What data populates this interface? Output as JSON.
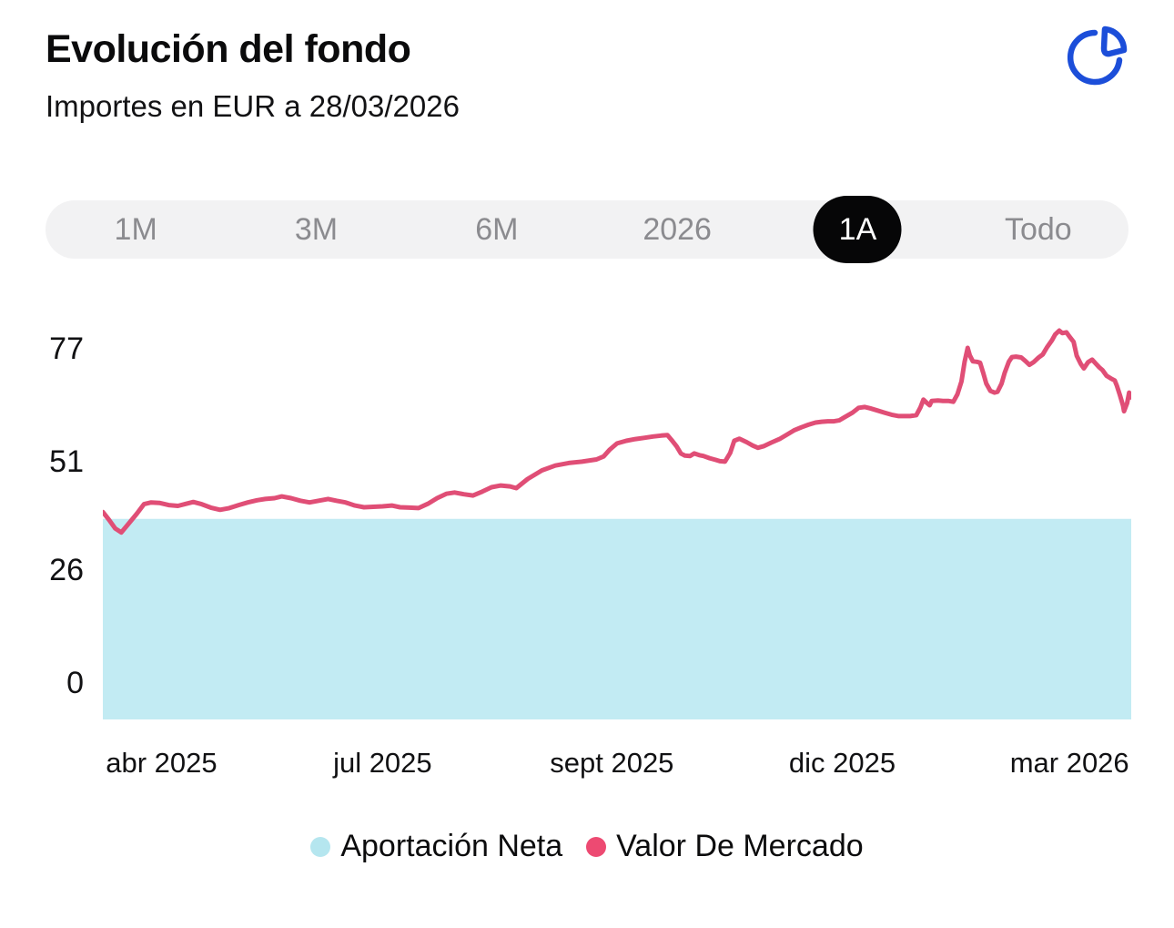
{
  "header": {
    "title": "Evolución del fondo",
    "subtitle": "Importes en EUR a 28/03/2026"
  },
  "icons": {
    "pie_chart_color": "#1C4ED9"
  },
  "range_selector": {
    "options": [
      "1M",
      "3M",
      "6M",
      "2026",
      "1A",
      "Todo"
    ],
    "selected": "1A",
    "selected_bg": "#060607",
    "inactive_color": "#8B8B8F"
  },
  "chart_data": {
    "type": "area+line",
    "title": "Evolución del fondo",
    "currency": "EUR",
    "as_of_date": "28/03/2026",
    "grid": false,
    "ylim": [
      0,
      86
    ],
    "y_ticks": [
      77,
      51,
      26,
      0
    ],
    "x_ticks": [
      {
        "label": "abr 2025",
        "f": 0.057
      },
      {
        "label": "jul 2025",
        "f": 0.272
      },
      {
        "label": "sept 2025",
        "f": 0.495
      },
      {
        "label": "dic 2025",
        "f": 0.719
      },
      {
        "label": "mar 2026",
        "f": 0.94
      }
    ],
    "series": [
      {
        "name": "Aportación Neta",
        "type": "area",
        "color": "#C2EBF3",
        "value_constant": 37.8
      },
      {
        "name": "Valor De Mercado",
        "type": "line",
        "color": "#E04E76",
        "points": [
          [
            0.0,
            39.4
          ],
          [
            0.006,
            37.6
          ],
          [
            0.012,
            35.6
          ],
          [
            0.018,
            34.7
          ],
          [
            0.024,
            36.4
          ],
          [
            0.033,
            39.0
          ],
          [
            0.04,
            41.2
          ],
          [
            0.047,
            41.6
          ],
          [
            0.055,
            41.5
          ],
          [
            0.064,
            41.0
          ],
          [
            0.073,
            40.8
          ],
          [
            0.081,
            41.3
          ],
          [
            0.088,
            41.7
          ],
          [
            0.096,
            41.2
          ],
          [
            0.105,
            40.4
          ],
          [
            0.114,
            39.9
          ],
          [
            0.123,
            40.3
          ],
          [
            0.132,
            41.0
          ],
          [
            0.141,
            41.6
          ],
          [
            0.15,
            42.1
          ],
          [
            0.158,
            42.4
          ],
          [
            0.167,
            42.6
          ],
          [
            0.174,
            43.0
          ],
          [
            0.183,
            42.6
          ],
          [
            0.192,
            42.0
          ],
          [
            0.201,
            41.6
          ],
          [
            0.21,
            42.0
          ],
          [
            0.219,
            42.4
          ],
          [
            0.227,
            42.0
          ],
          [
            0.236,
            41.6
          ],
          [
            0.245,
            40.9
          ],
          [
            0.254,
            40.5
          ],
          [
            0.263,
            40.6
          ],
          [
            0.272,
            40.7
          ],
          [
            0.281,
            40.9
          ],
          [
            0.289,
            40.5
          ],
          [
            0.298,
            40.4
          ],
          [
            0.307,
            40.3
          ],
          [
            0.316,
            41.3
          ],
          [
            0.325,
            42.6
          ],
          [
            0.334,
            43.6
          ],
          [
            0.342,
            43.9
          ],
          [
            0.351,
            43.5
          ],
          [
            0.36,
            43.2
          ],
          [
            0.369,
            44.1
          ],
          [
            0.378,
            45.1
          ],
          [
            0.387,
            45.5
          ],
          [
            0.396,
            45.3
          ],
          [
            0.402,
            44.9
          ],
          [
            0.413,
            47.0
          ],
          [
            0.427,
            49.0
          ],
          [
            0.44,
            50.1
          ],
          [
            0.453,
            50.7
          ],
          [
            0.466,
            51.0
          ],
          [
            0.48,
            51.5
          ],
          [
            0.487,
            52.2
          ],
          [
            0.493,
            53.8
          ],
          [
            0.5,
            55.2
          ],
          [
            0.509,
            55.8
          ],
          [
            0.518,
            56.2
          ],
          [
            0.527,
            56.5
          ],
          [
            0.535,
            56.8
          ],
          [
            0.543,
            57.0
          ],
          [
            0.549,
            57.1
          ],
          [
            0.553,
            56.0
          ],
          [
            0.558,
            54.5
          ],
          [
            0.562,
            52.9
          ],
          [
            0.566,
            52.4
          ],
          [
            0.571,
            52.3
          ],
          [
            0.575,
            52.9
          ],
          [
            0.58,
            52.5
          ],
          [
            0.584,
            52.3
          ],
          [
            0.59,
            51.8
          ],
          [
            0.596,
            51.4
          ],
          [
            0.6,
            51.1
          ],
          [
            0.605,
            51.0
          ],
          [
            0.61,
            53.0
          ],
          [
            0.614,
            55.8
          ],
          [
            0.619,
            56.3
          ],
          [
            0.626,
            55.5
          ],
          [
            0.632,
            54.7
          ],
          [
            0.637,
            54.2
          ],
          [
            0.643,
            54.6
          ],
          [
            0.65,
            55.4
          ],
          [
            0.658,
            56.2
          ],
          [
            0.665,
            57.2
          ],
          [
            0.672,
            58.2
          ],
          [
            0.679,
            58.9
          ],
          [
            0.686,
            59.5
          ],
          [
            0.693,
            60.0
          ],
          [
            0.699,
            60.2
          ],
          [
            0.705,
            60.3
          ],
          [
            0.711,
            60.3
          ],
          [
            0.716,
            60.5
          ],
          [
            0.721,
            61.2
          ],
          [
            0.729,
            62.3
          ],
          [
            0.735,
            63.4
          ],
          [
            0.741,
            63.6
          ],
          [
            0.746,
            63.3
          ],
          [
            0.753,
            62.8
          ],
          [
            0.76,
            62.3
          ],
          [
            0.767,
            61.8
          ],
          [
            0.774,
            61.5
          ],
          [
            0.78,
            61.5
          ],
          [
            0.785,
            61.5
          ],
          [
            0.791,
            61.7
          ],
          [
            0.795,
            63.5
          ],
          [
            0.798,
            65.3
          ],
          [
            0.801,
            64.6
          ],
          [
            0.804,
            64.0
          ],
          [
            0.806,
            65.0
          ],
          [
            0.812,
            65.1
          ],
          [
            0.817,
            65.0
          ],
          [
            0.822,
            65.0
          ],
          [
            0.827,
            64.8
          ],
          [
            0.831,
            66.5
          ],
          [
            0.835,
            69.5
          ],
          [
            0.838,
            74.0
          ],
          [
            0.841,
            77.2
          ],
          [
            0.843,
            75.5
          ],
          [
            0.846,
            74.1
          ],
          [
            0.85,
            74.0
          ],
          [
            0.853,
            73.8
          ],
          [
            0.856,
            71.5
          ],
          [
            0.859,
            69.0
          ],
          [
            0.863,
            67.3
          ],
          [
            0.867,
            66.9
          ],
          [
            0.87,
            67.1
          ],
          [
            0.874,
            69.0
          ],
          [
            0.877,
            71.5
          ],
          [
            0.881,
            74.0
          ],
          [
            0.884,
            75.1
          ],
          [
            0.888,
            75.2
          ],
          [
            0.893,
            75.0
          ],
          [
            0.897,
            74.2
          ],
          [
            0.901,
            73.3
          ],
          [
            0.905,
            73.9
          ],
          [
            0.91,
            75.0
          ],
          [
            0.914,
            75.7
          ],
          [
            0.918,
            77.3
          ],
          [
            0.923,
            79.0
          ],
          [
            0.926,
            80.3
          ],
          [
            0.93,
            81.2
          ],
          [
            0.933,
            80.6
          ],
          [
            0.937,
            80.8
          ],
          [
            0.94,
            79.8
          ],
          [
            0.944,
            78.6
          ],
          [
            0.947,
            75.4
          ],
          [
            0.951,
            73.5
          ],
          [
            0.954,
            72.5
          ],
          [
            0.958,
            73.9
          ],
          [
            0.962,
            74.5
          ],
          [
            0.965,
            73.7
          ],
          [
            0.969,
            72.7
          ],
          [
            0.972,
            72.1
          ],
          [
            0.976,
            70.8
          ],
          [
            0.98,
            70.2
          ],
          [
            0.984,
            69.7
          ],
          [
            0.986,
            68.5
          ],
          [
            0.989,
            66.3
          ],
          [
            0.992,
            63.9
          ],
          [
            0.993,
            62.6
          ],
          [
            0.996,
            64.5
          ],
          [
            0.998,
            66.9
          ],
          [
            1.0,
            65.8
          ]
        ]
      }
    ]
  },
  "legend": {
    "items": [
      {
        "label": "Aportación Neta",
        "color": "#B5E6EF"
      },
      {
        "label": "Valor De Mercado",
        "color": "#ED4A72"
      }
    ]
  }
}
